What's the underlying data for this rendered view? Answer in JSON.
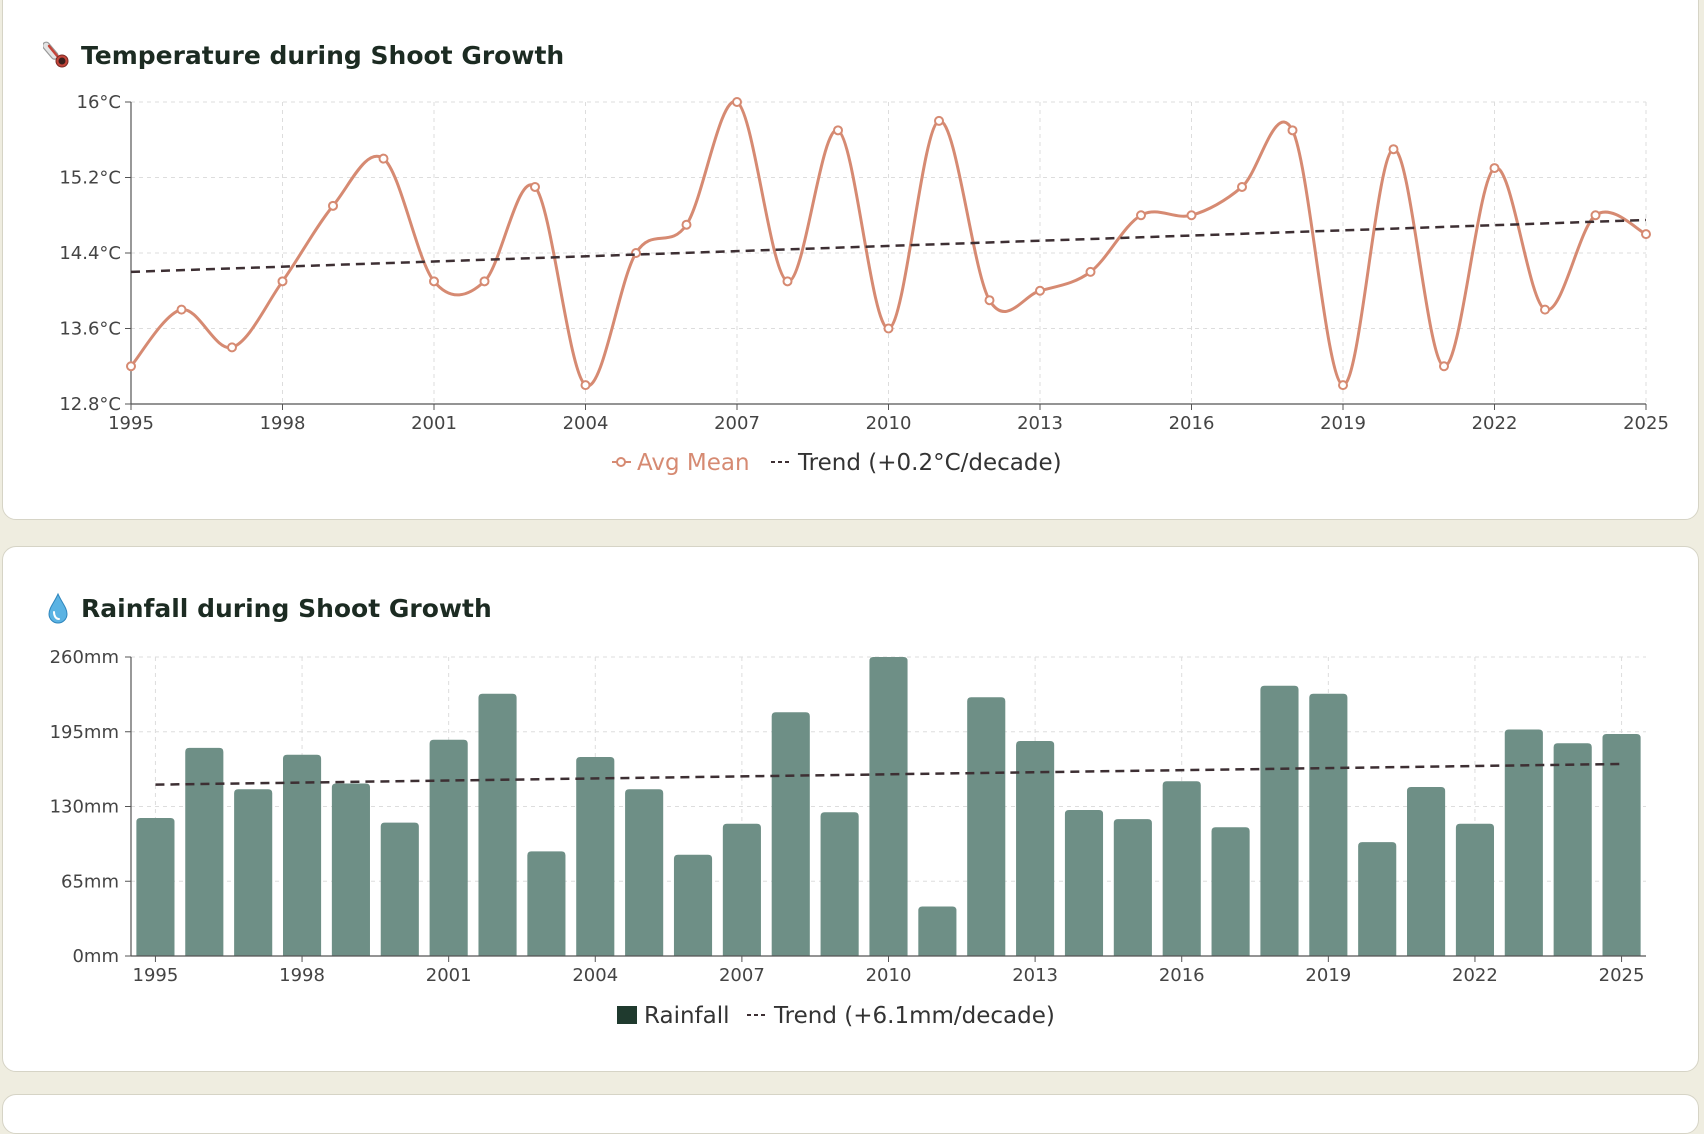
{
  "temperature_card": {
    "title": "Temperature during Shoot Growth",
    "icon": "thermometer-icon"
  },
  "rainfall_card": {
    "title": "Rainfall during Shoot Growth",
    "icon": "water-drop-icon"
  },
  "colors": {
    "temp_line": "#d68a72",
    "trend_line": "#3d2f33",
    "rain_bar": "#6e8f86",
    "rain_legend_swatch": "#1f3a2e",
    "grid": "#dddddd",
    "axis": "#555555"
  },
  "chart_data": [
    {
      "type": "line",
      "title": "Temperature during Shoot Growth",
      "x": [
        1995,
        1996,
        1997,
        1998,
        1999,
        2000,
        2001,
        2002,
        2003,
        2004,
        2005,
        2006,
        2007,
        2008,
        2009,
        2010,
        2011,
        2012,
        2013,
        2014,
        2015,
        2016,
        2017,
        2018,
        2019,
        2020,
        2021,
        2022,
        2023,
        2024,
        2025
      ],
      "x_ticks": [
        "1995",
        "1998",
        "2001",
        "2004",
        "2007",
        "2010",
        "2013",
        "2016",
        "2019",
        "2022",
        "2025"
      ],
      "y_ticks": [
        "12.8°C",
        "13.6°C",
        "14.4°C",
        "15.2°C",
        "16°C"
      ],
      "ylim": [
        12.8,
        16
      ],
      "series": [
        {
          "name": "Avg Mean",
          "values": [
            13.2,
            13.8,
            13.4,
            14.1,
            14.9,
            15.4,
            14.1,
            14.1,
            15.1,
            13.0,
            14.4,
            14.7,
            16.0,
            14.1,
            15.7,
            13.6,
            15.8,
            13.9,
            14.0,
            14.2,
            14.8,
            14.8,
            15.1,
            15.7,
            13.0,
            15.5,
            13.2,
            15.3,
            13.8,
            14.8,
            14.6
          ]
        }
      ],
      "trend": {
        "name": "Trend (+0.2°C/decade)",
        "start": 14.2,
        "end": 14.75
      },
      "grid": true,
      "legend": "bottom-center"
    },
    {
      "type": "bar",
      "title": "Rainfall during Shoot Growth",
      "x": [
        1995,
        1996,
        1997,
        1998,
        1999,
        2000,
        2001,
        2002,
        2003,
        2004,
        2005,
        2006,
        2007,
        2008,
        2009,
        2010,
        2011,
        2012,
        2013,
        2014,
        2015,
        2016,
        2017,
        2018,
        2019,
        2020,
        2021,
        2022,
        2023,
        2024,
        2025
      ],
      "x_ticks": [
        "1995",
        "1998",
        "2001",
        "2004",
        "2007",
        "2010",
        "2013",
        "2016",
        "2019",
        "2022",
        "2025"
      ],
      "y_ticks": [
        "0mm",
        "65mm",
        "130mm",
        "195mm",
        "260mm"
      ],
      "ylim": [
        0,
        260
      ],
      "series": [
        {
          "name": "Rainfall",
          "values": [
            120,
            181,
            145,
            175,
            150,
            116,
            188,
            228,
            91,
            173,
            145,
            88,
            115,
            212,
            125,
            260,
            43,
            225,
            187,
            127,
            119,
            152,
            112,
            235,
            228,
            99,
            147,
            115,
            197,
            185,
            193
          ]
        }
      ],
      "trend": {
        "name": "Trend (+6.1mm/decade)",
        "start": 149,
        "end": 167
      },
      "grid": true,
      "legend": "bottom-center"
    }
  ]
}
